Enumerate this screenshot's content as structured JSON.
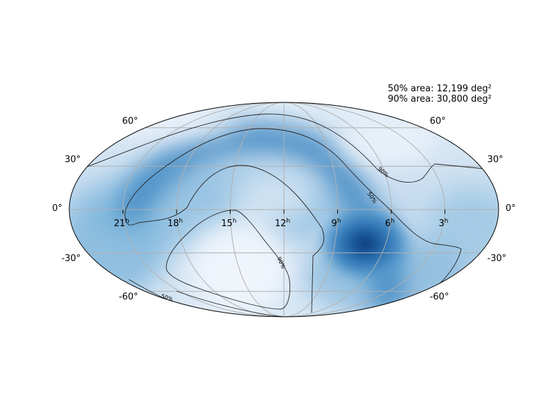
{
  "map": {
    "projection": "mollweide",
    "coordinate_system": "equatorial",
    "colormap": "Blues",
    "grid": true,
    "annotations": {
      "area_50": "50% area: 12,199 deg²",
      "area_90": "90% area: 30,800 deg²"
    },
    "ra_ticks": [
      {
        "hours": 21,
        "label": "21",
        "sup": "h"
      },
      {
        "hours": 18,
        "label": "18",
        "sup": "h"
      },
      {
        "hours": 15,
        "label": "15",
        "sup": "h"
      },
      {
        "hours": 12,
        "label": "12",
        "sup": "h"
      },
      {
        "hours": 9,
        "label": "9",
        "sup": "h"
      },
      {
        "hours": 6,
        "label": "6",
        "sup": "h"
      },
      {
        "hours": 3,
        "label": "3",
        "sup": "h"
      }
    ],
    "dec_ticks": [
      {
        "dec": 60,
        "label": "60°"
      },
      {
        "dec": 30,
        "label": "30°"
      },
      {
        "dec": 0,
        "label": "0°"
      },
      {
        "dec": -30,
        "label": "-30°"
      },
      {
        "dec": -60,
        "label": "-60°"
      }
    ],
    "contour_labels": {
      "c50": "50%",
      "c90": "90%"
    }
  }
}
